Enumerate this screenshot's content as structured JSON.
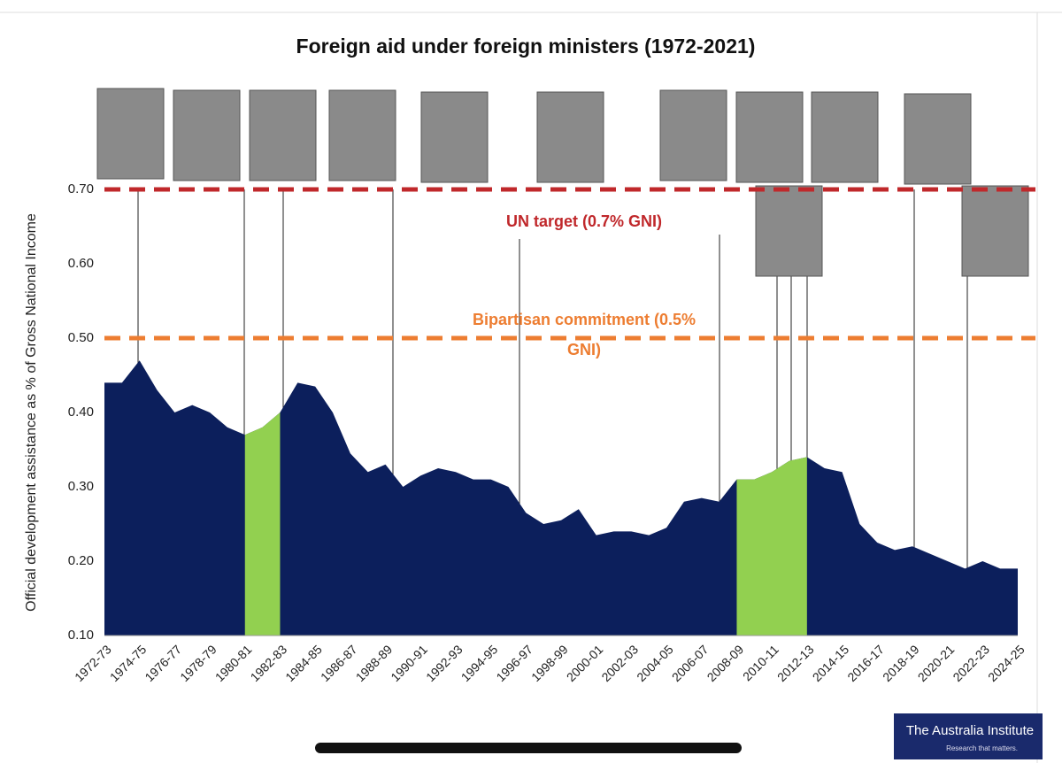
{
  "chart_data": {
    "type": "area",
    "title": "Foreign aid under foreign ministers (1972-2021)",
    "y_label": "Official development assistance as % of Gross National Income",
    "categories": [
      "1972-73",
      null,
      "1974-75",
      null,
      "1976-77",
      null,
      "1978-79",
      null,
      "1980-81",
      null,
      "1982-83",
      null,
      "1984-85",
      null,
      "1986-87",
      null,
      "1988-89",
      null,
      "1990-91",
      null,
      "1992-93",
      null,
      "1994-95",
      null,
      "1996-97",
      null,
      "1998-99",
      null,
      "2000-01",
      null,
      "2002-03",
      null,
      "2004-05",
      null,
      "2006-07",
      null,
      "2008-09",
      null,
      "2010-11",
      null,
      "2012-13",
      null,
      "2014-15",
      null,
      "2016-17",
      null,
      "2018-19",
      null,
      "2020-21",
      null,
      "2022-23",
      null,
      "2024-25"
    ],
    "values": [
      0.44,
      0.44,
      0.47,
      0.43,
      0.4,
      0.41,
      0.4,
      0.38,
      0.37,
      0.38,
      0.4,
      0.44,
      0.435,
      0.4,
      0.345,
      0.32,
      0.33,
      0.3,
      0.315,
      0.325,
      0.32,
      0.31,
      0.31,
      0.3,
      0.265,
      0.25,
      0.255,
      0.27,
      0.235,
      0.24,
      0.24,
      0.235,
      0.245,
      0.28,
      0.285,
      0.28,
      0.31,
      0.31,
      0.32,
      0.335,
      0.34,
      0.325,
      0.32,
      0.25,
      0.225,
      0.215,
      0.22,
      0.21,
      0.2,
      0.19,
      0.2,
      0.19,
      0.19
    ],
    "color": "#0c1f5c",
    "highlights": [
      {
        "from": "1980-81",
        "to": "1982-83",
        "color": "#92d050"
      },
      {
        "from": "2008-09",
        "to": "2012-13",
        "color": "#92d050"
      }
    ],
    "reference_lines": [
      {
        "value": 0.7,
        "color": "#c0282b",
        "label_lines": [
          "UN target (0.7% GNI)"
        ]
      },
      {
        "value": 0.5,
        "color": "#ed7d31",
        "label_lines": [
          "Bipartisan commitment (0.5%",
          "GNI)"
        ]
      }
    ],
    "ylim": [
      0.1,
      0.7
    ],
    "yticks": [
      {
        "value": 0.1,
        "label": "0.10"
      },
      {
        "value": 0.2,
        "label": "0.20"
      },
      {
        "value": 0.3,
        "label": "0.30"
      },
      {
        "value": 0.4,
        "label": "0.40"
      },
      {
        "value": 0.5,
        "label": "0.50"
      },
      {
        "value": 0.6,
        "label": "0.60"
      },
      {
        "value": 0.7,
        "label": "0.70"
      }
    ],
    "grid": false,
    "logo": {
      "name": "The Australia Institute",
      "tagline": "Research that matters."
    }
  }
}
